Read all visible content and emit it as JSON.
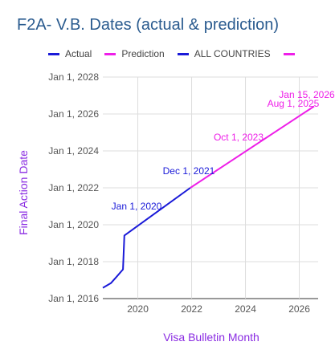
{
  "chart_data": {
    "type": "line",
    "title": "F2A- V.B. Dates (actual & prediction)",
    "xlabel": "Visa Bulletin Month",
    "ylabel": "Final Action Date",
    "xlim": [
      2018.7,
      2026.7
    ],
    "ylim": [
      "2016-01-01",
      "2028-01-01"
    ],
    "x_ticks": [
      "2020",
      "2022",
      "2024",
      "2026"
    ],
    "y_ticks": [
      "Jan 1, 2016",
      "Jan 1, 2018",
      "Jan 1, 2020",
      "Jan 1, 2022",
      "Jan 1, 2024",
      "Jan 1, 2026",
      "Jan 1, 2028"
    ],
    "y_tick_dates": [
      "2016-01-01",
      "2018-01-01",
      "2020-01-01",
      "2022-01-01",
      "2024-01-01",
      "2026-01-01",
      "2028-01-01"
    ],
    "grid": true,
    "legend_position": "top",
    "legend": [
      {
        "label": "Actual",
        "color": "#1a1ad8"
      },
      {
        "label": "Prediction",
        "color": "#ee1ee8"
      },
      {
        "label": "ALL COUNTRIES",
        "color": "#1a1ad8"
      },
      {
        "label": "",
        "color": "#ee1ee8"
      }
    ],
    "series": [
      {
        "name": "Actual",
        "color": "#1a1ad8",
        "points": [
          {
            "x": 2018.7,
            "y": "2016-08-01"
          },
          {
            "x": 2019.0,
            "y": "2016-11-01"
          },
          {
            "x": 2019.2,
            "y": "2017-03-01"
          },
          {
            "x": 2019.45,
            "y": "2017-08-01"
          },
          {
            "x": 2019.5,
            "y": "2019-06-01"
          },
          {
            "x": 2021.95,
            "y": "2022-01-01"
          }
        ]
      },
      {
        "name": "Prediction",
        "color": "#ee1ee8",
        "points": [
          {
            "x": 2021.95,
            "y": "2022-01-01"
          },
          {
            "x": 2026.55,
            "y": "2026-06-01"
          }
        ]
      }
    ],
    "annotations": [
      {
        "text": "Jan 1, 2020",
        "color": "#1a1ad8"
      },
      {
        "text": "Dec 1, 2021",
        "color": "#1a1ad8"
      },
      {
        "text": "Oct 1, 2023",
        "color": "#ee1ee8"
      },
      {
        "text": "Aug 1, 2025",
        "color": "#ee1ee8"
      },
      {
        "text": "Jan 15, 2026",
        "color": "#ee1ee8"
      }
    ],
    "title_color": "#2a5b8f",
    "axis_title_color": "#8a2be2"
  }
}
